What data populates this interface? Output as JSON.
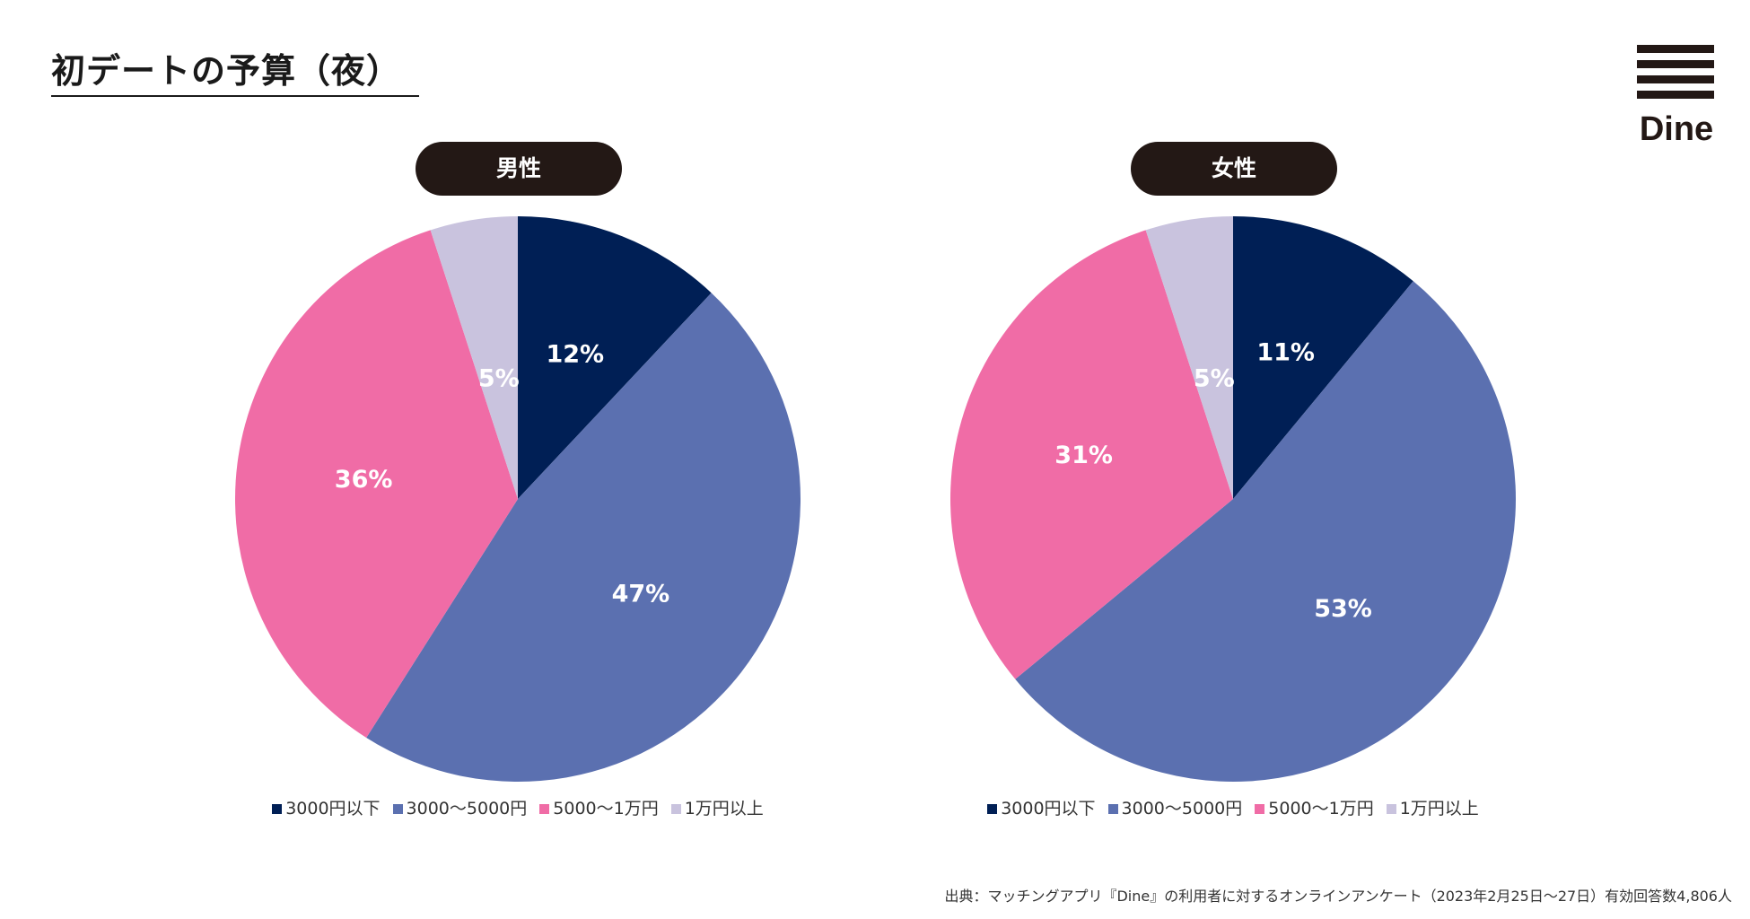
{
  "title": "初デートの予算（夜）",
  "logo": {
    "text": "Dine"
  },
  "colors": {
    "under_3000": "#001f55",
    "3000_5000": "#5b70b0",
    "5000_10000": "#f06ca6",
    "over_10000": "#c9c3de"
  },
  "legend": [
    {
      "label": "3000円以下",
      "color": "#001f55"
    },
    {
      "label": "3000〜5000円",
      "color": "#5b70b0"
    },
    {
      "label": "5000〜1万円",
      "color": "#f06ca6"
    },
    {
      "label": "1万円以上",
      "color": "#c9c3de"
    }
  ],
  "chart_data": [
    {
      "type": "pie",
      "title": "男性",
      "categories": [
        "3000円以下",
        "3000〜5000円",
        "5000〜1万円",
        "1万円以上"
      ],
      "values": [
        12,
        47,
        36,
        5
      ],
      "labels": [
        "12%",
        "47%",
        "36%",
        "5%"
      ],
      "legend_placement": "bottom"
    },
    {
      "type": "pie",
      "title": "女性",
      "categories": [
        "3000円以下",
        "3000〜5000円",
        "5000〜1万円",
        "1万円以上"
      ],
      "values": [
        11,
        53,
        31,
        5
      ],
      "labels": [
        "11%",
        "53%",
        "31%",
        "5%"
      ],
      "legend_placement": "bottom"
    }
  ],
  "footnote": "出典：マッチングアプリ『Dine』の利用者に対するオンラインアンケート（2023年2月25日〜27日）有効回答数4,806人"
}
